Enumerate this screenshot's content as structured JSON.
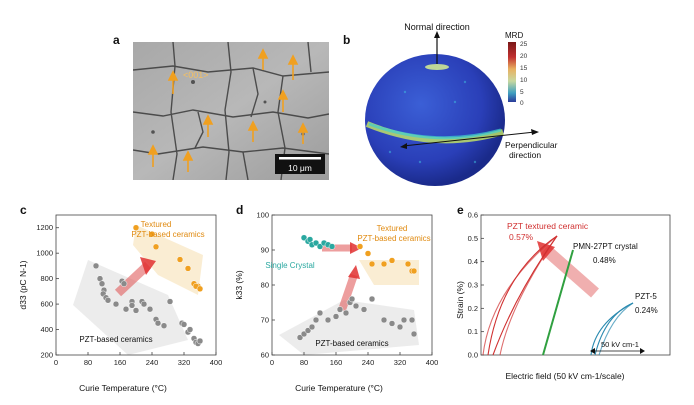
{
  "panels": {
    "a": {
      "letter": "a",
      "orientation_label": "<001>",
      "scale_bar_label": "10 μm"
    },
    "b": {
      "letter": "b",
      "normal_label": "Normal direction",
      "perpendicular_label_line1": "Perpendicular",
      "perpendicular_label_line2": "direction",
      "colorbar_title": "MRD",
      "colorbar_ticks": [
        "25",
        "20",
        "15",
        "10",
        "5",
        "0"
      ]
    },
    "c": {
      "letter": "c"
    },
    "d": {
      "letter": "d"
    },
    "e": {
      "letter": "e"
    }
  },
  "chart_data": [
    {
      "id": "c",
      "type": "scatter",
      "xlabel": "Curie Temperature (°C)",
      "ylabel": "d33 (pC N-1)",
      "xlim": [
        0,
        400
      ],
      "ylim": [
        200,
        1300
      ],
      "xticks": [
        "0",
        "80",
        "160",
        "240",
        "320",
        "400"
      ],
      "yticks": [
        "200",
        "400",
        "600",
        "800",
        "1000",
        "1200"
      ],
      "annotations": [
        "Textured",
        "PZT-based ceramics",
        "PZT-based ceramics"
      ],
      "series": [
        {
          "name": "Textured PZT-based ceramics",
          "color": "#f0a020",
          "x": [
            200,
            240,
            250,
            310,
            330,
            345,
            355,
            350,
            360
          ],
          "y": [
            1200,
            1150,
            1050,
            950,
            880,
            760,
            740,
            740,
            720
          ]
        },
        {
          "name": "PZT-based ceramics",
          "color": "#8a8a8a",
          "x": [
            100,
            110,
            115,
            120,
            118,
            125,
            130,
            150,
            165,
            170,
            175,
            190,
            190,
            200,
            215,
            220,
            235,
            250,
            255,
            270,
            285,
            315,
            320,
            330,
            335,
            345,
            350,
            355,
            360
          ],
          "y": [
            900,
            800,
            760,
            710,
            680,
            650,
            630,
            600,
            780,
            760,
            560,
            620,
            590,
            550,
            620,
            600,
            560,
            480,
            450,
            430,
            620,
            450,
            440,
            380,
            400,
            330,
            300,
            290,
            310
          ]
        }
      ]
    },
    {
      "id": "d",
      "type": "scatter",
      "xlabel": "Curie Temperature (°C)",
      "ylabel": "k33 (%)",
      "xlim": [
        0,
        400
      ],
      "ylim": [
        60,
        100
      ],
      "xticks": [
        "0",
        "80",
        "160",
        "240",
        "320",
        "400"
      ],
      "yticks": [
        "60",
        "70",
        "80",
        "90",
        "100"
      ],
      "annotations": [
        "Textured",
        "PZT-based ceramics",
        "Single Crystal",
        "PZT-based ceramics"
      ],
      "series": [
        {
          "name": "Single Crystal",
          "color": "#2aa8a0",
          "x": [
            80,
            90,
            95,
            100,
            110,
            120,
            130,
            140,
            150
          ],
          "y": [
            93.5,
            92.5,
            93,
            91.5,
            92,
            91,
            92,
            91.5,
            91
          ]
        },
        {
          "name": "Textured PZT-based ceramics",
          "color": "#f0a020",
          "x": [
            220,
            240,
            250,
            280,
            300,
            340,
            350,
            355
          ],
          "y": [
            91,
            89,
            86,
            86,
            87,
            86,
            84,
            84
          ]
        },
        {
          "name": "PZT-based ceramics",
          "color": "#8a8a8a",
          "x": [
            70,
            80,
            90,
            100,
            110,
            120,
            140,
            160,
            170,
            185,
            195,
            200,
            210,
            230,
            250,
            280,
            300,
            320,
            330,
            350,
            355
          ],
          "y": [
            65,
            66,
            67,
            68,
            70,
            72,
            70,
            71,
            73,
            72,
            75,
            76,
            74,
            73,
            76,
            70,
            69,
            68,
            70,
            70,
            66
          ]
        }
      ]
    },
    {
      "id": "e",
      "type": "line",
      "xlabel": "Electric field (50 kV cm-1/scale)",
      "ylabel": "Strain (%)",
      "ylim": [
        0,
        0.6
      ],
      "yticks": [
        "0.0",
        "0.1",
        "0.2",
        "0.3",
        "0.4",
        "0.5",
        "0.6"
      ],
      "scale_label": "50 kV cm-1",
      "labels": [
        {
          "name": "PZT textured ceramic",
          "value": "0.57%",
          "color": "#d03030"
        },
        {
          "name": "PMN-27PT crystal",
          "value": "0.48%",
          "color": "#30a040"
        },
        {
          "name": "PZT-5",
          "value": "0.24%",
          "color": "#2a8ab0"
        }
      ],
      "peaks": [
        0.57,
        0.48,
        0.24
      ]
    }
  ]
}
